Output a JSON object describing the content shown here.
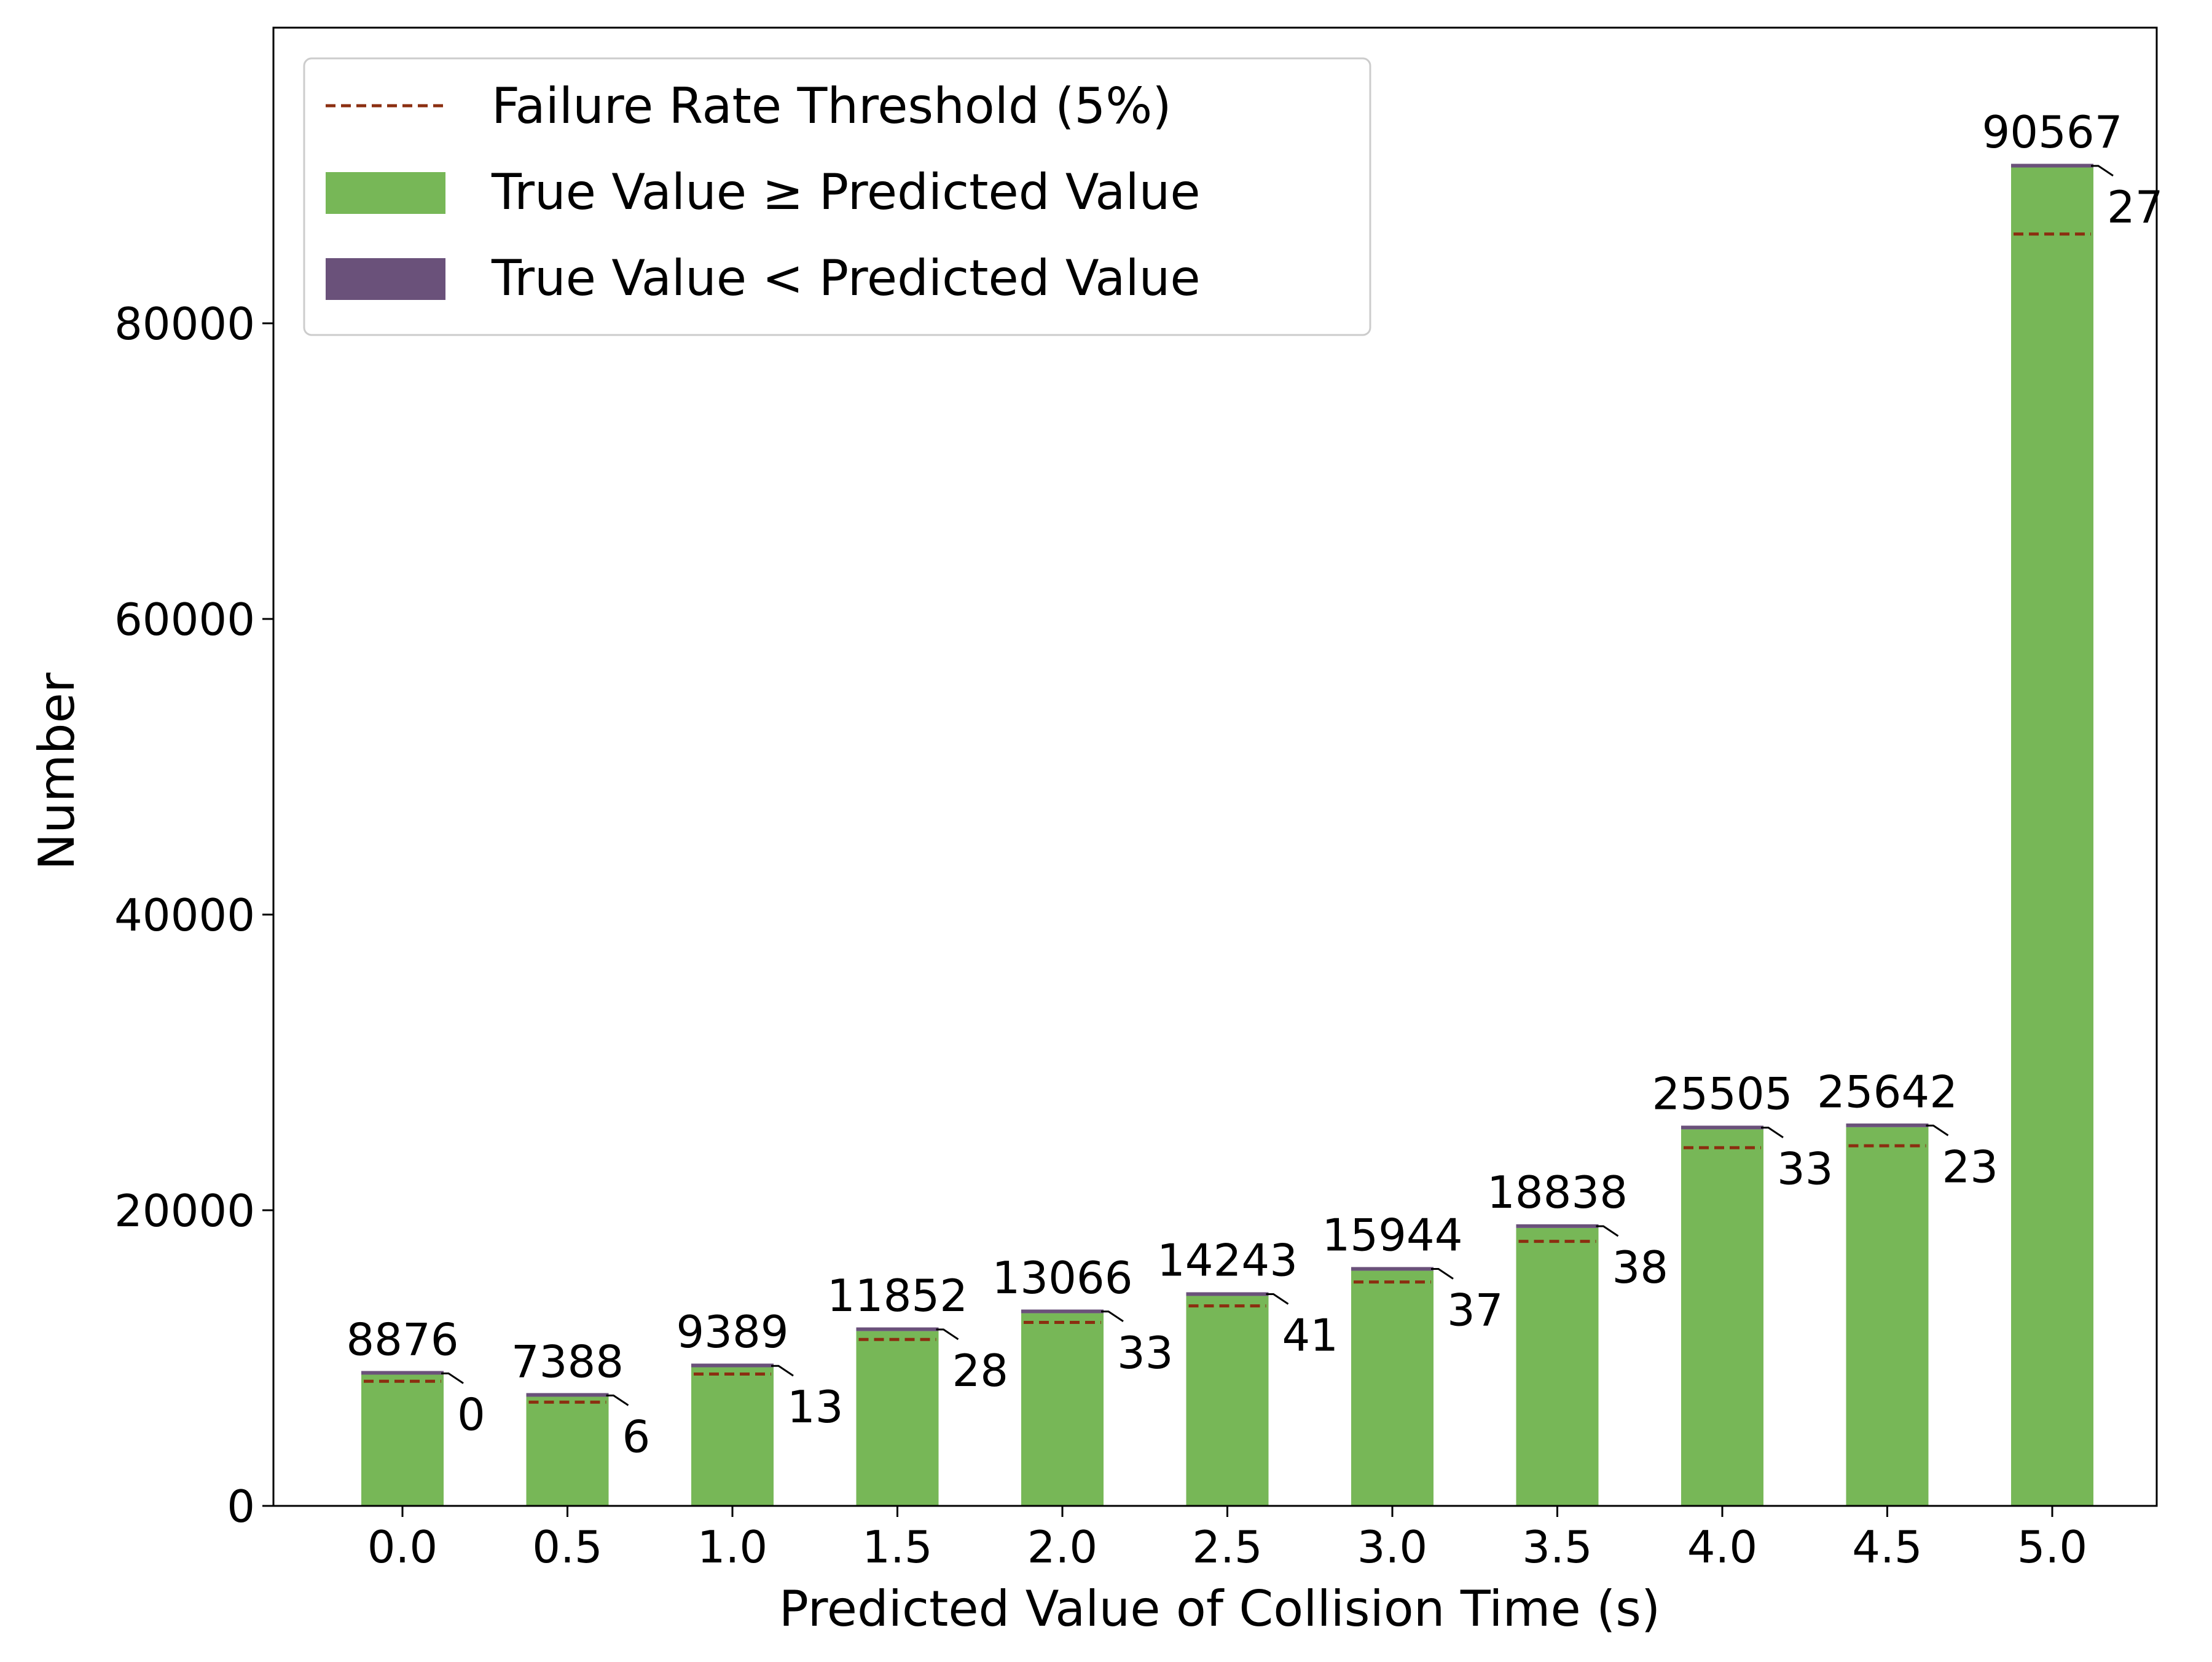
{
  "chart_data": {
    "type": "bar",
    "title": "",
    "xlabel": "Predicted Value of Collision Time (s)",
    "ylabel": "Number",
    "categories": [
      "0.0",
      "0.5",
      "1.0",
      "1.5",
      "2.0",
      "2.5",
      "3.0",
      "3.5",
      "4.0",
      "4.5",
      "5.0"
    ],
    "ylim": [
      0,
      100000
    ],
    "yticks": [
      0,
      20000,
      40000,
      60000,
      80000
    ],
    "ytick_labels": [
      "0",
      "20000",
      "40000",
      "60000",
      "80000"
    ],
    "series": [
      {
        "name": "True Value ≥ Predicted Value",
        "color": "#77b757",
        "values": [
          8876,
          7382,
          9376,
          11824,
          13033,
          14202,
          15907,
          18800,
          25472,
          25619,
          90540
        ]
      },
      {
        "name": "True Value < Predicted Value",
        "color": "#6a517a",
        "values": [
          0,
          6,
          13,
          28,
          33,
          41,
          37,
          38,
          33,
          23,
          27
        ]
      }
    ],
    "totals": [
      8876,
      7388,
      9389,
      11852,
      13066,
      14243,
      15944,
      18838,
      25505,
      25642,
      90567
    ],
    "total_labels": [
      "8876",
      "7388",
      "9389",
      "11852",
      "13066",
      "14243",
      "15944",
      "18838",
      "25505",
      "25642",
      "90567"
    ],
    "failure_labels": [
      "0",
      "6",
      "13",
      "28",
      "33",
      "41",
      "37",
      "38",
      "33",
      "23",
      "27"
    ],
    "threshold": {
      "name": "Failure Rate Threshold (5%)",
      "rate": 0.05,
      "color": "#8b2e10",
      "style": "dashed"
    },
    "legend": {
      "placement": "top-left",
      "entries": [
        "Failure Rate Threshold (5%)",
        "True Value ≥ Predicted Value",
        "True Value < Predicted Value"
      ]
    },
    "grid": false
  }
}
